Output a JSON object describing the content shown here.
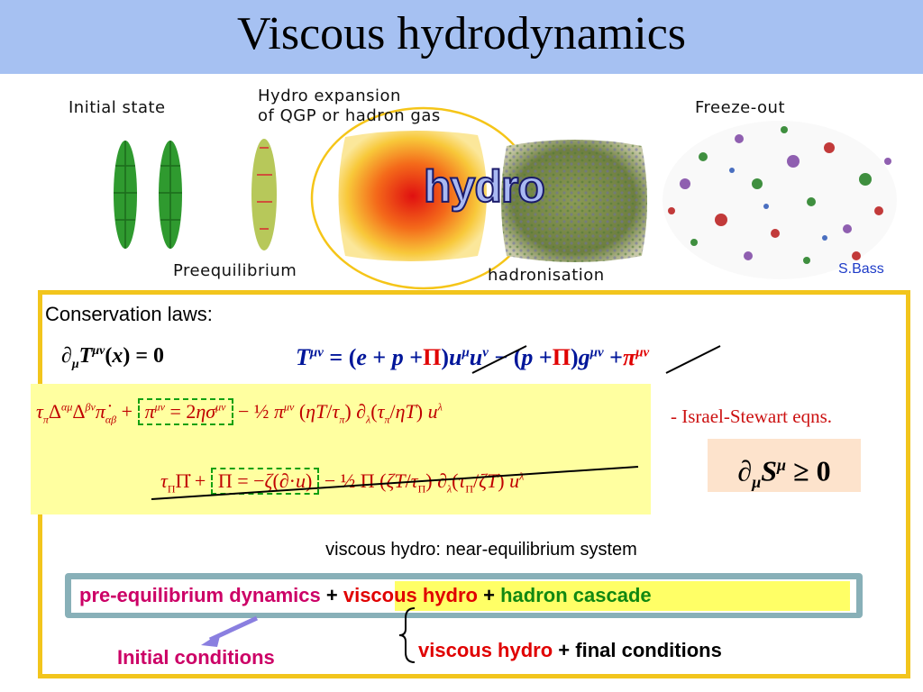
{
  "slide": {
    "title": "Viscous hydrodynamics",
    "stages": {
      "initial_state": "Initial state",
      "hydro_expansion_line1": "Hydro expansion",
      "hydro_expansion_line2": "of QGP or hadron gas",
      "freeze_out": "Freeze-out",
      "preequilibrium": "Preequilibrium",
      "hadronisation": "hadronisation",
      "hydro_word": "hydro"
    },
    "credit": "S.Bass",
    "conservation_label": "Conservation laws:",
    "israel_stewart": "- Israel-Stewart eqns.",
    "near_equilibrium": "viscous hydro:  near-equilibrium system",
    "pipeline": {
      "pre_eq": "pre-equilibrium dynamics",
      "plus1": "+",
      "viscous": "viscous hydro",
      "plus2": "+",
      "cascade": "hadron cascade"
    },
    "final": {
      "viscous": "viscous hydro",
      "plus": "+",
      "conditions": "final conditions"
    },
    "initial_conditions": "Initial conditions",
    "colors": {
      "title_bar": "#a6c1f2",
      "frame": "#f2c51c",
      "magenta": "#cc0066",
      "red": "#e00000",
      "green": "#118811"
    }
  }
}
